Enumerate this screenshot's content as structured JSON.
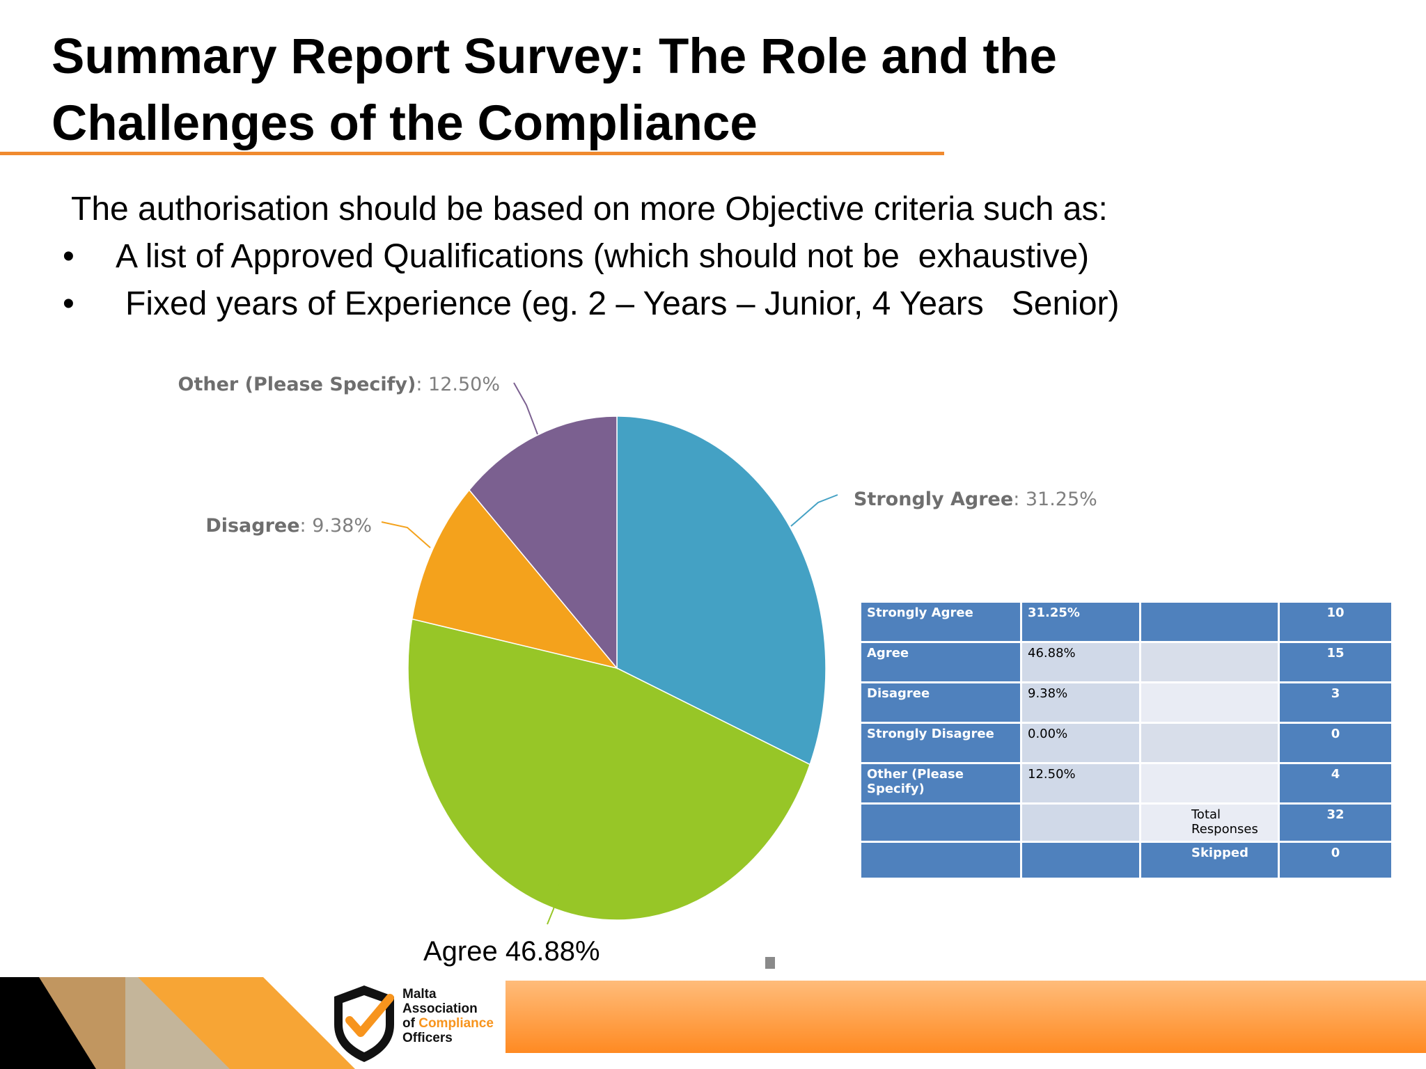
{
  "title": "Summary Report Survey: The Role and the Challenges of the Compliance",
  "intro": "The authorisation should be based on more Objective criteria such as:",
  "bullets": [
    "A list of Approved Qualifications (which should not be  exhaustive)",
    "Fixed years of Experience (eg. 2 – Years – Junior, 4 Years   Senior)"
  ],
  "bullet_symbol": "•",
  "colors": {
    "accent_orange": "#f08a2f",
    "table_header_blue": "#4f81bd"
  },
  "chart_data": {
    "type": "pie",
    "slices": [
      {
        "name": "Strongly Agree",
        "value": 31.25,
        "label": "Strongly Agree: 31.25%",
        "color": "#44a1c4"
      },
      {
        "name": "Agree",
        "value": 46.88,
        "label": "Agree 46.88%",
        "color": "#97c627"
      },
      {
        "name": "Disagree",
        "value": 9.38,
        "label": "Disagree: 9.38%",
        "color": "#f4a21c"
      },
      {
        "name": "Other (Please Specify)",
        "value": 12.5,
        "label": "Other (Please Specify): 12.50%",
        "color": "#7b6090"
      }
    ]
  },
  "table": {
    "rows": [
      {
        "label": "Strongly Agree",
        "percent": "31.25%",
        "extra": "",
        "count": "10"
      },
      {
        "label": "Agree",
        "percent": "46.88%",
        "extra": "",
        "count": "15"
      },
      {
        "label": "Disagree",
        "percent": "9.38%",
        "extra": "",
        "count": "3"
      },
      {
        "label": "Strongly Disagree",
        "percent": "0.00%",
        "extra": "",
        "count": "0"
      },
      {
        "label": "Other (Please Specify)",
        "percent": "12.50%",
        "extra": "",
        "count": "4"
      },
      {
        "label": "",
        "percent": "",
        "extra": "Total Responses",
        "count": "32"
      },
      {
        "label": "",
        "percent": "",
        "extra": "Skipped",
        "count": "0"
      }
    ]
  },
  "logo": {
    "line1": "Malta",
    "line2": "Association",
    "line3_prefix": "of",
    "line3_highlight": "Compliance",
    "line4": "Officers"
  }
}
